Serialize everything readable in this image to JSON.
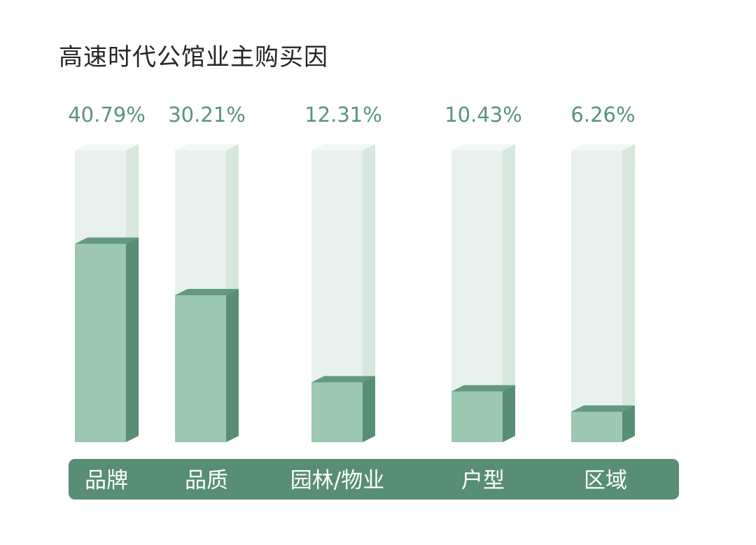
{
  "title": "高速时代公馆业主购买因",
  "colors": {
    "label": "#5a9478",
    "track_front": "#e8f1ed",
    "track_side": "#d6e7de",
    "track_top": "#f2f8f5",
    "fill_front": "#9cc7b1",
    "fill_side": "#578e74",
    "fill_top": "#63997f",
    "category_band": "#578e74",
    "category_text": "#ffffff"
  },
  "chart_data": {
    "type": "bar",
    "title": "高速时代公馆业主购买因",
    "categories": [
      "品牌",
      "品质",
      "园林/物业",
      "户型",
      "区域"
    ],
    "values": [
      40.79,
      30.21,
      12.31,
      10.43,
      6.26
    ],
    "value_labels": [
      "40.79%",
      "30.21%",
      "12.31%",
      "10.43%",
      "6.26%"
    ],
    "ylim": [
      0,
      60
    ],
    "grid": false,
    "legend": "none"
  }
}
